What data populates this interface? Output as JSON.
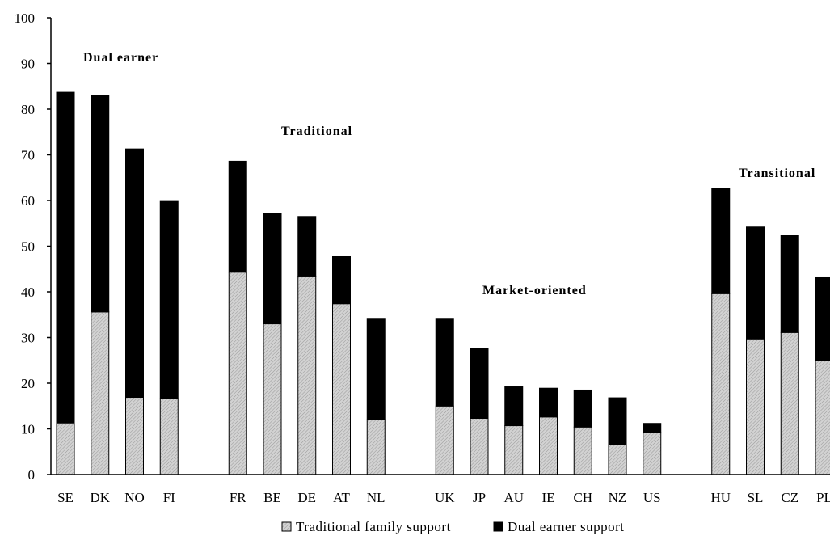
{
  "chart_data": {
    "type": "bar",
    "stacked": true,
    "ylim": [
      0,
      100
    ],
    "yticks": [
      0,
      10,
      20,
      30,
      40,
      50,
      60,
      70,
      80,
      90,
      100
    ],
    "grid": false,
    "legend_placement": "bottom-center",
    "categories": [
      "SE",
      "DK",
      "NO",
      "FI",
      "FR",
      "BE",
      "DE",
      "AT",
      "NL",
      "UK",
      "JP",
      "AU",
      "IE",
      "CH",
      "NZ",
      "US",
      "HU",
      "SL",
      "CZ",
      "PL"
    ],
    "groups": [
      {
        "label": "Dual earner",
        "members": [
          "SE",
          "DK",
          "NO",
          "FI"
        ]
      },
      {
        "label": "Traditional",
        "members": [
          "FR",
          "BE",
          "DE",
          "AT",
          "NL"
        ]
      },
      {
        "label": "Market-oriented",
        "members": [
          "UK",
          "JP",
          "AU",
          "IE",
          "CH",
          "NZ",
          "US"
        ]
      },
      {
        "label": "Transitional",
        "members": [
          "HU",
          "SL",
          "CZ",
          "PL"
        ]
      }
    ],
    "series": [
      {
        "name": "Traditional family support",
        "color": "#c8c8c8",
        "values": [
          11.3,
          35.6,
          16.9,
          16.6,
          44.3,
          33.0,
          43.3,
          37.4,
          12.0,
          15.0,
          12.3,
          10.7,
          12.6,
          10.4,
          6.5,
          9.2,
          39.6,
          29.7,
          31.1,
          25.0
        ]
      },
      {
        "name": "Dual earner support",
        "color": "#000000",
        "values": [
          72.4,
          47.4,
          54.4,
          43.2,
          24.3,
          24.2,
          13.2,
          10.3,
          22.2,
          19.2,
          15.3,
          8.5,
          6.3,
          8.1,
          10.3,
          2.0,
          23.1,
          24.5,
          21.2,
          18.1
        ]
      }
    ]
  }
}
